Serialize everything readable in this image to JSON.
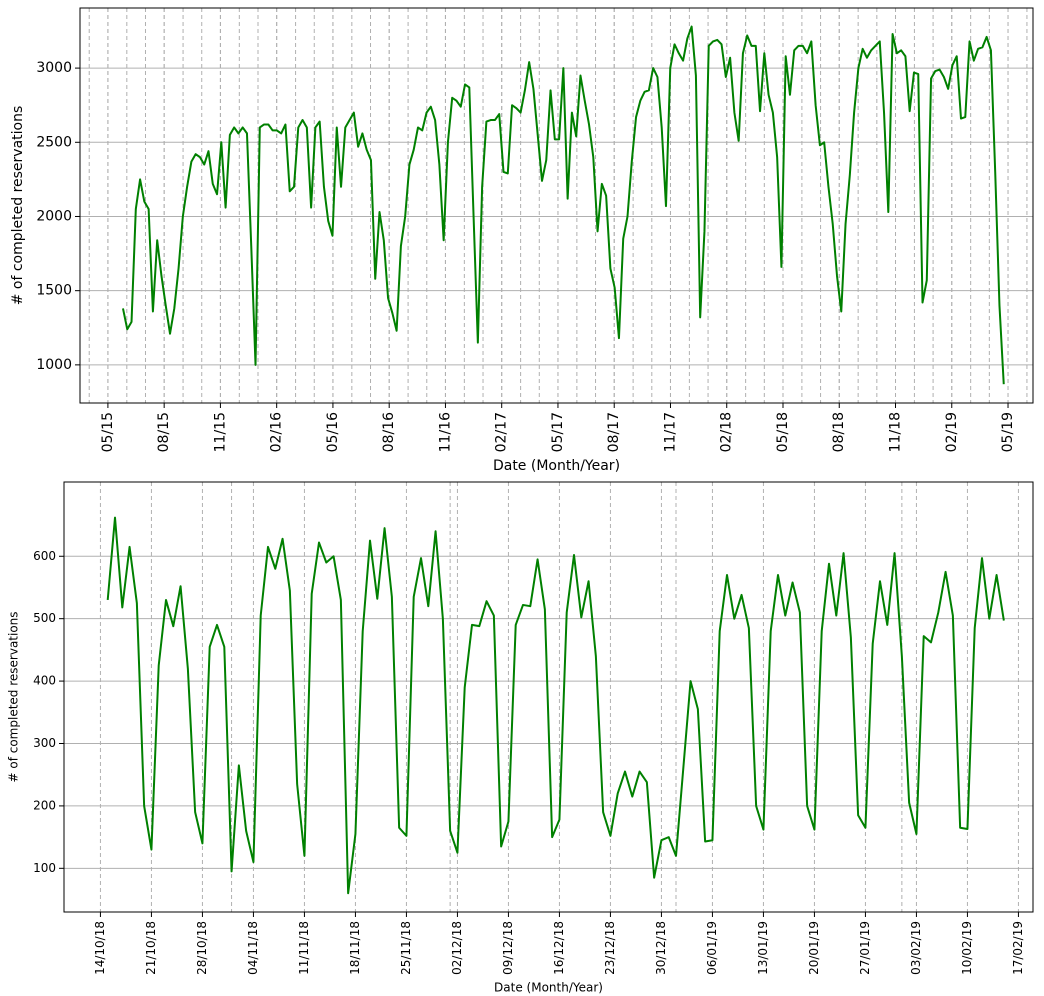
{
  "chart_data": [
    {
      "type": "line",
      "xlabel": "Date (Month/Year)",
      "ylabel": "# of completed reservations",
      "color": "#008000",
      "grid": true,
      "xlim": [
        2015.209,
        2019.444
      ],
      "ylim": [
        743,
        3405
      ],
      "yticks": [
        1000,
        1500,
        2000,
        2500,
        3000
      ],
      "xticks": [
        {
          "value": 2015.333,
          "label": "05/15"
        },
        {
          "value": 2015.583,
          "label": "08/15"
        },
        {
          "value": 2015.833,
          "label": "11/15"
        },
        {
          "value": 2016.083,
          "label": "02/16"
        },
        {
          "value": 2016.333,
          "label": "05/16"
        },
        {
          "value": 2016.583,
          "label": "08/16"
        },
        {
          "value": 2016.833,
          "label": "11/16"
        },
        {
          "value": 2017.083,
          "label": "02/17"
        },
        {
          "value": 2017.333,
          "label": "05/17"
        },
        {
          "value": 2017.583,
          "label": "08/17"
        },
        {
          "value": 2017.833,
          "label": "11/17"
        },
        {
          "value": 2018.083,
          "label": "02/18"
        },
        {
          "value": 2018.333,
          "label": "05/18"
        },
        {
          "value": 2018.583,
          "label": "08/18"
        },
        {
          "value": 2018.833,
          "label": "11/18"
        },
        {
          "value": 2019.083,
          "label": "02/19"
        },
        {
          "value": 2019.333,
          "label": "05/19"
        }
      ],
      "xminorticks": [
        2015.25,
        2015.333,
        2015.417,
        2015.5,
        2015.583,
        2015.667,
        2015.75,
        2015.833,
        2015.917,
        2016,
        2016.083,
        2016.167,
        2016.25,
        2016.333,
        2016.417,
        2016.5,
        2016.583,
        2016.667,
        2016.75,
        2016.833,
        2016.917,
        2017,
        2017.083,
        2017.167,
        2017.25,
        2017.333,
        2017.417,
        2017.5,
        2017.583,
        2017.667,
        2017.75,
        2017.833,
        2017.917,
        2018,
        2018.083,
        2018.167,
        2018.25,
        2018.333,
        2018.417,
        2018.5,
        2018.583,
        2018.667,
        2018.75,
        2018.833,
        2018.917,
        2019,
        2019.083,
        2019.167,
        2019.25,
        2019.333,
        2019.417
      ],
      "x": [
        2015.4,
        2015.419,
        2015.438,
        2015.457,
        2015.476,
        2015.495,
        2015.514,
        2015.533,
        2015.552,
        2015.571,
        2015.59,
        2015.609,
        2015.628,
        2015.647,
        2015.666,
        2015.685,
        2015.704,
        2015.723,
        2015.742,
        2015.761,
        2015.78,
        2015.799,
        2015.818,
        2015.837,
        2015.856,
        2015.875,
        2015.894,
        2015.913,
        2015.932,
        2015.951,
        2015.97,
        2015.989,
        2016.008,
        2016.027,
        2016.046,
        2016.065,
        2016.084,
        2016.103,
        2016.122,
        2016.141,
        2016.16,
        2016.179,
        2016.198,
        2016.217,
        2016.236,
        2016.255,
        2016.274,
        2016.293,
        2016.312,
        2016.331,
        2016.35,
        2016.369,
        2016.388,
        2016.407,
        2016.426,
        2016.445,
        2016.464,
        2016.483,
        2016.502,
        2016.521,
        2016.54,
        2016.559,
        2016.578,
        2016.597,
        2016.616,
        2016.635,
        2016.654,
        2016.673,
        2016.692,
        2016.711,
        2016.73,
        2016.749,
        2016.768,
        2016.787,
        2016.806,
        2016.825,
        2016.844,
        2016.863,
        2016.882,
        2016.901,
        2016.92,
        2016.939,
        2016.958,
        2016.977,
        2016.996,
        2017.015,
        2017.034,
        2017.053,
        2017.072,
        2017.091,
        2017.11,
        2017.129,
        2017.148,
        2017.167,
        2017.186,
        2017.205,
        2017.224,
        2017.243,
        2017.262,
        2017.281,
        2017.3,
        2017.319,
        2017.338,
        2017.357,
        2017.376,
        2017.395,
        2017.414,
        2017.433,
        2017.452,
        2017.471,
        2017.49,
        2017.509,
        2017.528,
        2017.547,
        2017.566,
        2017.585,
        2017.604,
        2017.623,
        2017.642,
        2017.661,
        2017.68,
        2017.699,
        2017.718,
        2017.737,
        2017.756,
        2017.775,
        2017.794,
        2017.813,
        2017.832,
        2017.851,
        2017.87,
        2017.889,
        2017.908,
        2017.927,
        2017.946,
        2017.965,
        2017.984,
        2018.003,
        2018.022,
        2018.041,
        2018.06,
        2018.079,
        2018.098,
        2018.117,
        2018.136,
        2018.155,
        2018.174,
        2018.193,
        2018.212,
        2018.231,
        2018.25,
        2018.269,
        2018.288,
        2018.307,
        2018.326,
        2018.345,
        2018.364,
        2018.383,
        2018.402,
        2018.421,
        2018.44,
        2018.459,
        2018.478,
        2018.497,
        2018.516,
        2018.535,
        2018.554,
        2018.573,
        2018.592,
        2018.611,
        2018.63,
        2018.649,
        2018.668,
        2018.687,
        2018.706,
        2018.725,
        2018.744,
        2018.763,
        2018.782,
        2018.801,
        2018.82,
        2018.839,
        2018.858,
        2018.877,
        2018.896,
        2018.915,
        2018.934,
        2018.953,
        2018.972,
        2018.991,
        2019.01,
        2019.029,
        2019.048,
        2019.067,
        2019.086,
        2019.105,
        2019.124,
        2019.143,
        2019.162,
        2019.181,
        2019.2,
        2019.219,
        2019.238,
        2019.257,
        2019.276,
        2019.295,
        2019.314
      ],
      "values": [
        1380,
        1240,
        1290,
        2050,
        2250,
        2100,
        2050,
        1360,
        1840,
        1600,
        1400,
        1210,
        1380,
        1650,
        2000,
        2200,
        2370,
        2420,
        2400,
        2350,
        2440,
        2220,
        2150,
        2500,
        2060,
        2550,
        2600,
        2560,
        2600,
        2560,
        1800,
        1000,
        2600,
        2620,
        2620,
        2580,
        2580,
        2560,
        2620,
        2170,
        2200,
        2600,
        2650,
        2600,
        2060,
        2600,
        2640,
        2200,
        1970,
        1870,
        2600,
        2200,
        2600,
        2650,
        2700,
        2470,
        2560,
        2450,
        2380,
        1580,
        2030,
        1840,
        1450,
        1350,
        1230,
        1800,
        2000,
        2350,
        2450,
        2600,
        2580,
        2700,
        2740,
        2650,
        2350,
        1840,
        2500,
        2800,
        2780,
        2740,
        2890,
        2870,
        2000,
        1150,
        2200,
        2640,
        2650,
        2650,
        2690,
        2300,
        2290,
        2750,
        2730,
        2700,
        2850,
        3040,
        2860,
        2550,
        2240,
        2380,
        2850,
        2520,
        2520,
        3000,
        2120,
        2700,
        2540,
        2950,
        2780,
        2620,
        2400,
        1900,
        2220,
        2140,
        1650,
        1520,
        1180,
        1850,
        2000,
        2370,
        2670,
        2780,
        2840,
        2850,
        3000,
        2940,
        2600,
        2070,
        3000,
        3160,
        3100,
        3050,
        3200,
        3280,
        2950,
        1320,
        1900,
        3150,
        3180,
        3190,
        3160,
        2940,
        3070,
        2700,
        2510,
        3100,
        3220,
        3150,
        3150,
        2710,
        3100,
        2820,
        2700,
        2400,
        1660,
        3080,
        2820,
        3120,
        3150,
        3150,
        3100,
        3180,
        2750,
        2480,
        2500,
        2200,
        1950,
        1600,
        1360,
        1950,
        2280,
        2700,
        3000,
        3130,
        3070,
        3120,
        3150,
        3180,
        2700,
        2030,
        3230,
        3100,
        3120,
        3080,
        2710,
        2970,
        2960,
        1420,
        1570,
        2930,
        2980,
        2990,
        2940,
        2860,
        3020,
        3080,
        2660,
        2670,
        3180,
        3050,
        3130,
        3140,
        3210,
        3120,
        2300,
        1400,
        870
      ]
    },
    {
      "type": "line",
      "xlabel": "Date (Month/Year)",
      "ylabel": "# of completed reservations",
      "color": "#008000",
      "grid": true,
      "xlim": [
        "2018-10-09",
        "2019-02-19"
      ],
      "ylim": [
        30,
        719
      ],
      "yticks": [
        100,
        200,
        300,
        400,
        500,
        600
      ],
      "xticks": [
        {
          "value": "2018-10-14",
          "label": "14/10/18"
        },
        {
          "value": "2018-10-21",
          "label": "21/10/18"
        },
        {
          "value": "2018-10-28",
          "label": "28/10/18"
        },
        {
          "value": "2018-11-04",
          "label": "04/11/18"
        },
        {
          "value": "2018-11-11",
          "label": "11/11/18"
        },
        {
          "value": "2018-11-18",
          "label": "18/11/18"
        },
        {
          "value": "2018-11-25",
          "label": "25/11/18"
        },
        {
          "value": "2018-12-02",
          "label": "02/12/18"
        },
        {
          "value": "2018-12-09",
          "label": "09/12/18"
        },
        {
          "value": "2018-12-16",
          "label": "16/12/18"
        },
        {
          "value": "2018-12-23",
          "label": "23/12/18"
        },
        {
          "value": "2018-12-30",
          "label": "30/12/18"
        },
        {
          "value": "2019-01-06",
          "label": "06/01/19"
        },
        {
          "value": "2019-01-13",
          "label": "13/01/19"
        },
        {
          "value": "2019-01-20",
          "label": "20/01/19"
        },
        {
          "value": "2019-01-27",
          "label": "27/01/19"
        },
        {
          "value": "2019-02-03",
          "label": "03/02/19"
        },
        {
          "value": "2019-02-10",
          "label": "10/02/19"
        },
        {
          "value": "2019-02-17",
          "label": "17/02/19"
        }
      ],
      "xminorticks": [
        "2018-11-01",
        "2018-12-01",
        "2019-01-01",
        "2019-02-01"
      ],
      "x": [
        "2018-10-15",
        "2018-10-16",
        "2018-10-17",
        "2018-10-18",
        "2018-10-19",
        "2018-10-20",
        "2018-10-21",
        "2018-10-22",
        "2018-10-23",
        "2018-10-24",
        "2018-10-25",
        "2018-10-26",
        "2018-10-27",
        "2018-10-28",
        "2018-10-29",
        "2018-10-30",
        "2018-10-31",
        "2018-11-01",
        "2018-11-02",
        "2018-11-03",
        "2018-11-04",
        "2018-11-05",
        "2018-11-06",
        "2018-11-07",
        "2018-11-08",
        "2018-11-09",
        "2018-11-10",
        "2018-11-11",
        "2018-11-12",
        "2018-11-13",
        "2018-11-14",
        "2018-11-15",
        "2018-11-16",
        "2018-11-17",
        "2018-11-18",
        "2018-11-19",
        "2018-11-20",
        "2018-11-21",
        "2018-11-22",
        "2018-11-23",
        "2018-11-24",
        "2018-11-25",
        "2018-11-26",
        "2018-11-27",
        "2018-11-28",
        "2018-11-29",
        "2018-11-30",
        "2018-12-01",
        "2018-12-02",
        "2018-12-03",
        "2018-12-04",
        "2018-12-05",
        "2018-12-06",
        "2018-12-07",
        "2018-12-08",
        "2018-12-09",
        "2018-12-10",
        "2018-12-11",
        "2018-12-12",
        "2018-12-13",
        "2018-12-14",
        "2018-12-15",
        "2018-12-16",
        "2018-12-17",
        "2018-12-18",
        "2018-12-19",
        "2018-12-20",
        "2018-12-21",
        "2018-12-22",
        "2018-12-23",
        "2018-12-24",
        "2018-12-25",
        "2018-12-26",
        "2018-12-27",
        "2018-12-28",
        "2018-12-29",
        "2018-12-30",
        "2018-12-31",
        "2019-01-01",
        "2019-01-02",
        "2019-01-03",
        "2019-01-04",
        "2019-01-05",
        "2019-01-06",
        "2019-01-07",
        "2019-01-08",
        "2019-01-09",
        "2019-01-10",
        "2019-01-11",
        "2019-01-12",
        "2019-01-13",
        "2019-01-14",
        "2019-01-15",
        "2019-01-16",
        "2019-01-17",
        "2019-01-18",
        "2019-01-19",
        "2019-01-20",
        "2019-01-21",
        "2019-01-22",
        "2019-01-23",
        "2019-01-24",
        "2019-01-25",
        "2019-01-26",
        "2019-01-27",
        "2019-01-28",
        "2019-01-29",
        "2019-01-30",
        "2019-01-31",
        "2019-02-01",
        "2019-02-02",
        "2019-02-03",
        "2019-02-04",
        "2019-02-05",
        "2019-02-06",
        "2019-02-07",
        "2019-02-08",
        "2019-02-09",
        "2019-02-10",
        "2019-02-11",
        "2019-02-12",
        "2019-02-13",
        "2019-02-14",
        "2019-02-15"
      ],
      "values": [
        530,
        662,
        518,
        615,
        525,
        200,
        130,
        425,
        530,
        488,
        552,
        420,
        190,
        140,
        455,
        490,
        455,
        95,
        265,
        160,
        110,
        505,
        615,
        580,
        628,
        545,
        235,
        120,
        540,
        622,
        590,
        600,
        530,
        60,
        155,
        480,
        625,
        532,
        645,
        535,
        165,
        152,
        535,
        597,
        520,
        640,
        500,
        160,
        125,
        390,
        490,
        488,
        528,
        505,
        135,
        175,
        490,
        522,
        520,
        595,
        515,
        150,
        178,
        510,
        602,
        502,
        560,
        440,
        190,
        152,
        220,
        255,
        215,
        255,
        238,
        85,
        145,
        150,
        120,
        260,
        400,
        355,
        143,
        145,
        480,
        570,
        500,
        538,
        485,
        200,
        162,
        480,
        570,
        505,
        558,
        510,
        200,
        162,
        480,
        588,
        505,
        605,
        470,
        185,
        165,
        460,
        560,
        490,
        605,
        440,
        205,
        155,
        472,
        462,
        510,
        575,
        505,
        165,
        163,
        485,
        597,
        500,
        570,
        497
      ]
    }
  ]
}
